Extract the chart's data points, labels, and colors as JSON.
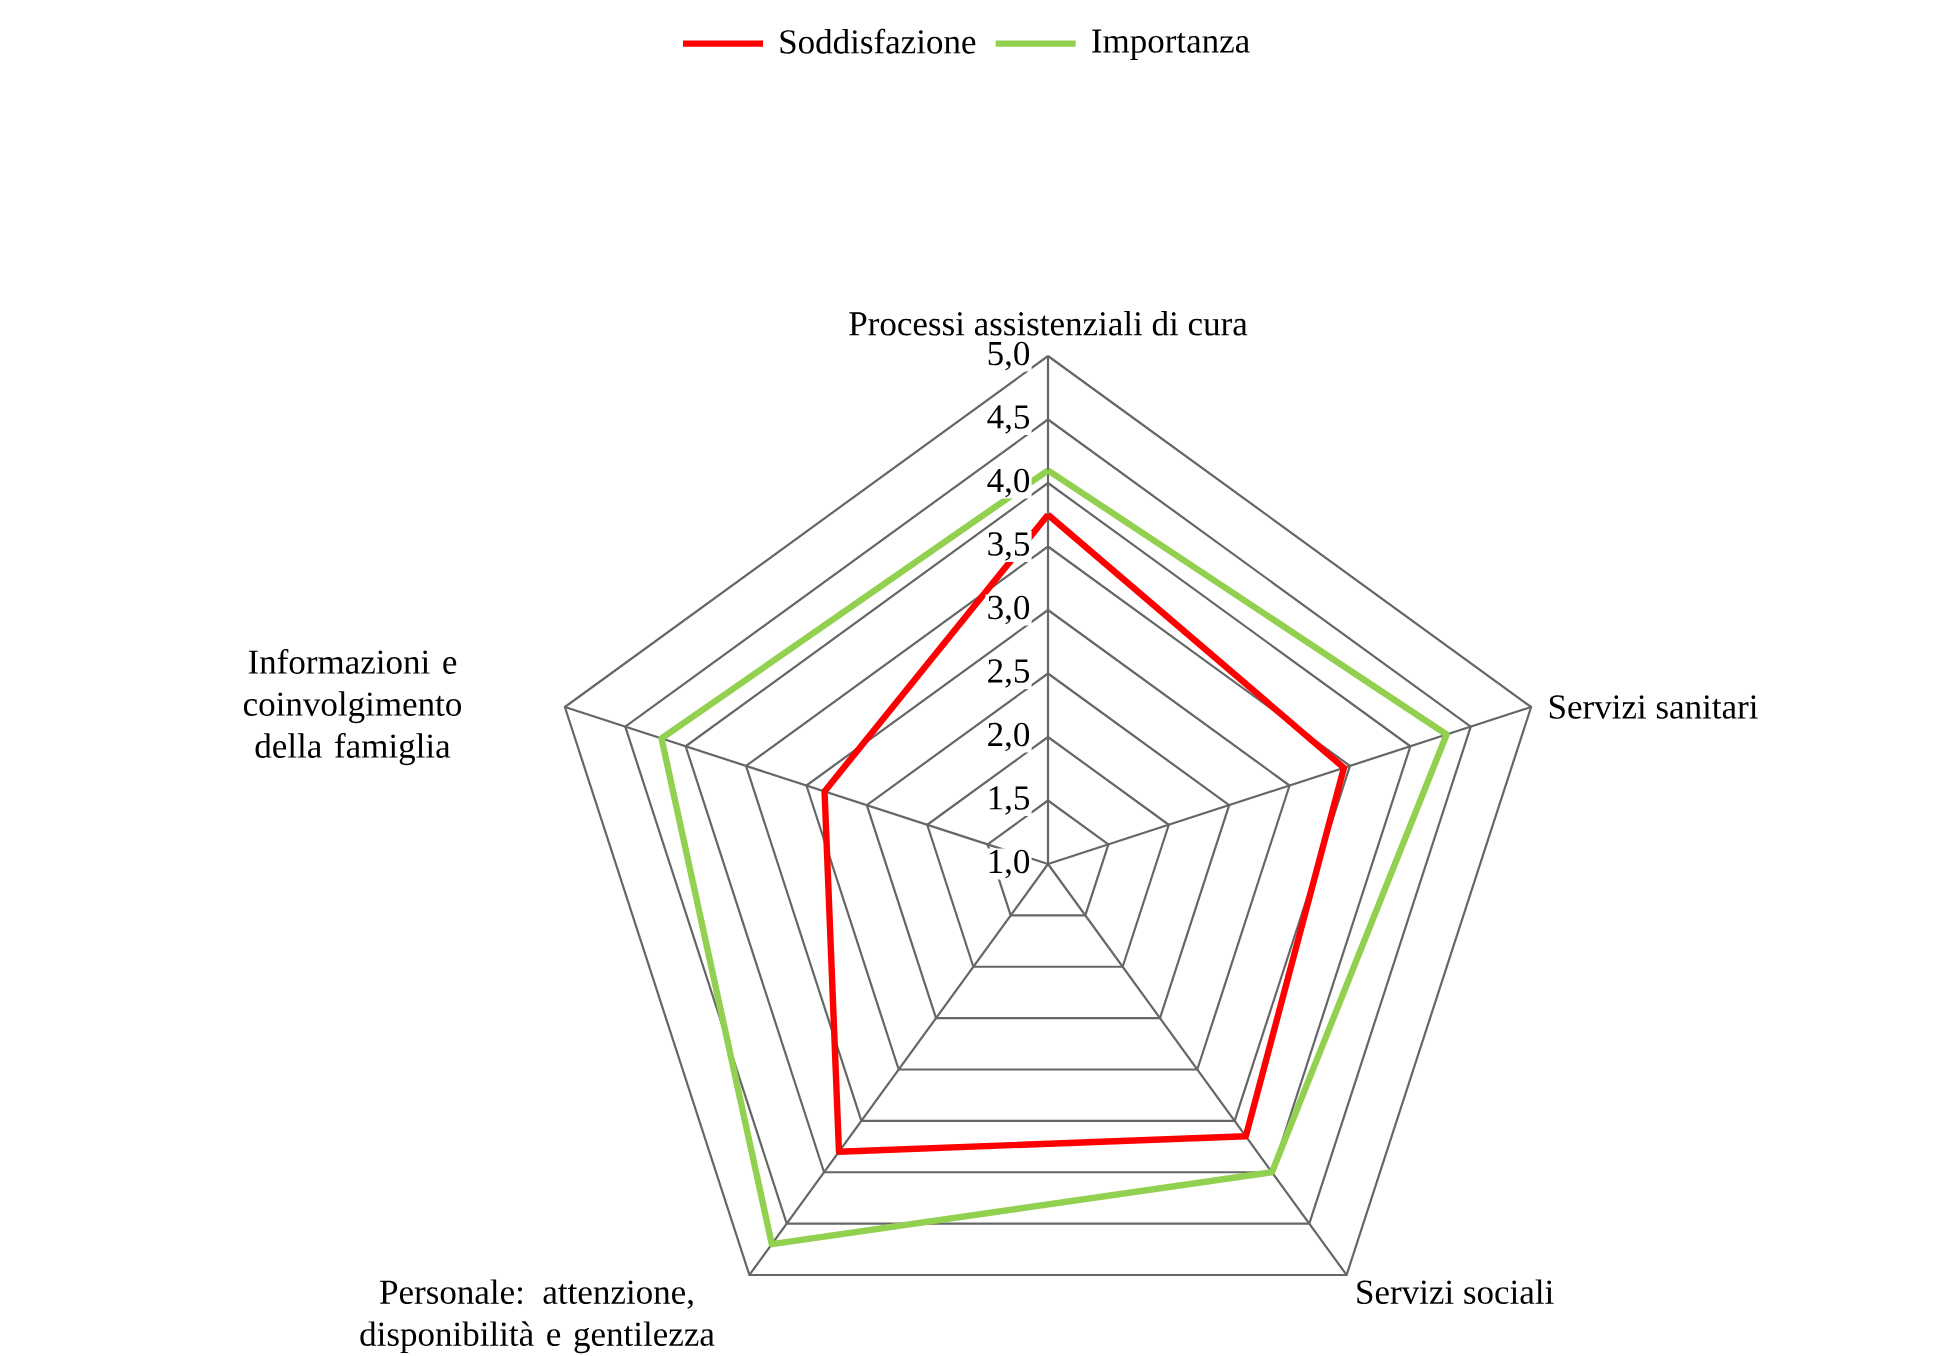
{
  "chart_data": {
    "type": "radar",
    "categories": [
      "Processi assistenziali di cura",
      "Servizi sanitari",
      "Servizi sociali",
      "Personale: attenzione, disponibilità e gentilezza",
      "Informazioni e coinvolgimento della famiglia"
    ],
    "series": [
      {
        "name": "Soddisfazione",
        "color": "#ff0000",
        "values": [
          3.75,
          3.45,
          3.65,
          3.8,
          2.85
        ]
      },
      {
        "name": "Importanza",
        "color": "#92d050",
        "values": [
          4.1,
          4.3,
          4.0,
          4.7,
          4.2
        ]
      }
    ],
    "ylim": [
      1,
      5
    ],
    "yticks": [
      {
        "value": 1,
        "label": "1,0"
      },
      {
        "value": 1.5,
        "label": "1,5"
      },
      {
        "value": 2,
        "label": "2,0"
      },
      {
        "value": 2.5,
        "label": "2,5"
      },
      {
        "value": 3,
        "label": "3,0"
      },
      {
        "value": 3.5,
        "label": "3,5"
      },
      {
        "value": 4,
        "label": "4,0"
      },
      {
        "value": 4.5,
        "label": "4,5"
      },
      {
        "value": 5,
        "label": "5,0"
      }
    ],
    "grid": true,
    "legend": "top"
  }
}
